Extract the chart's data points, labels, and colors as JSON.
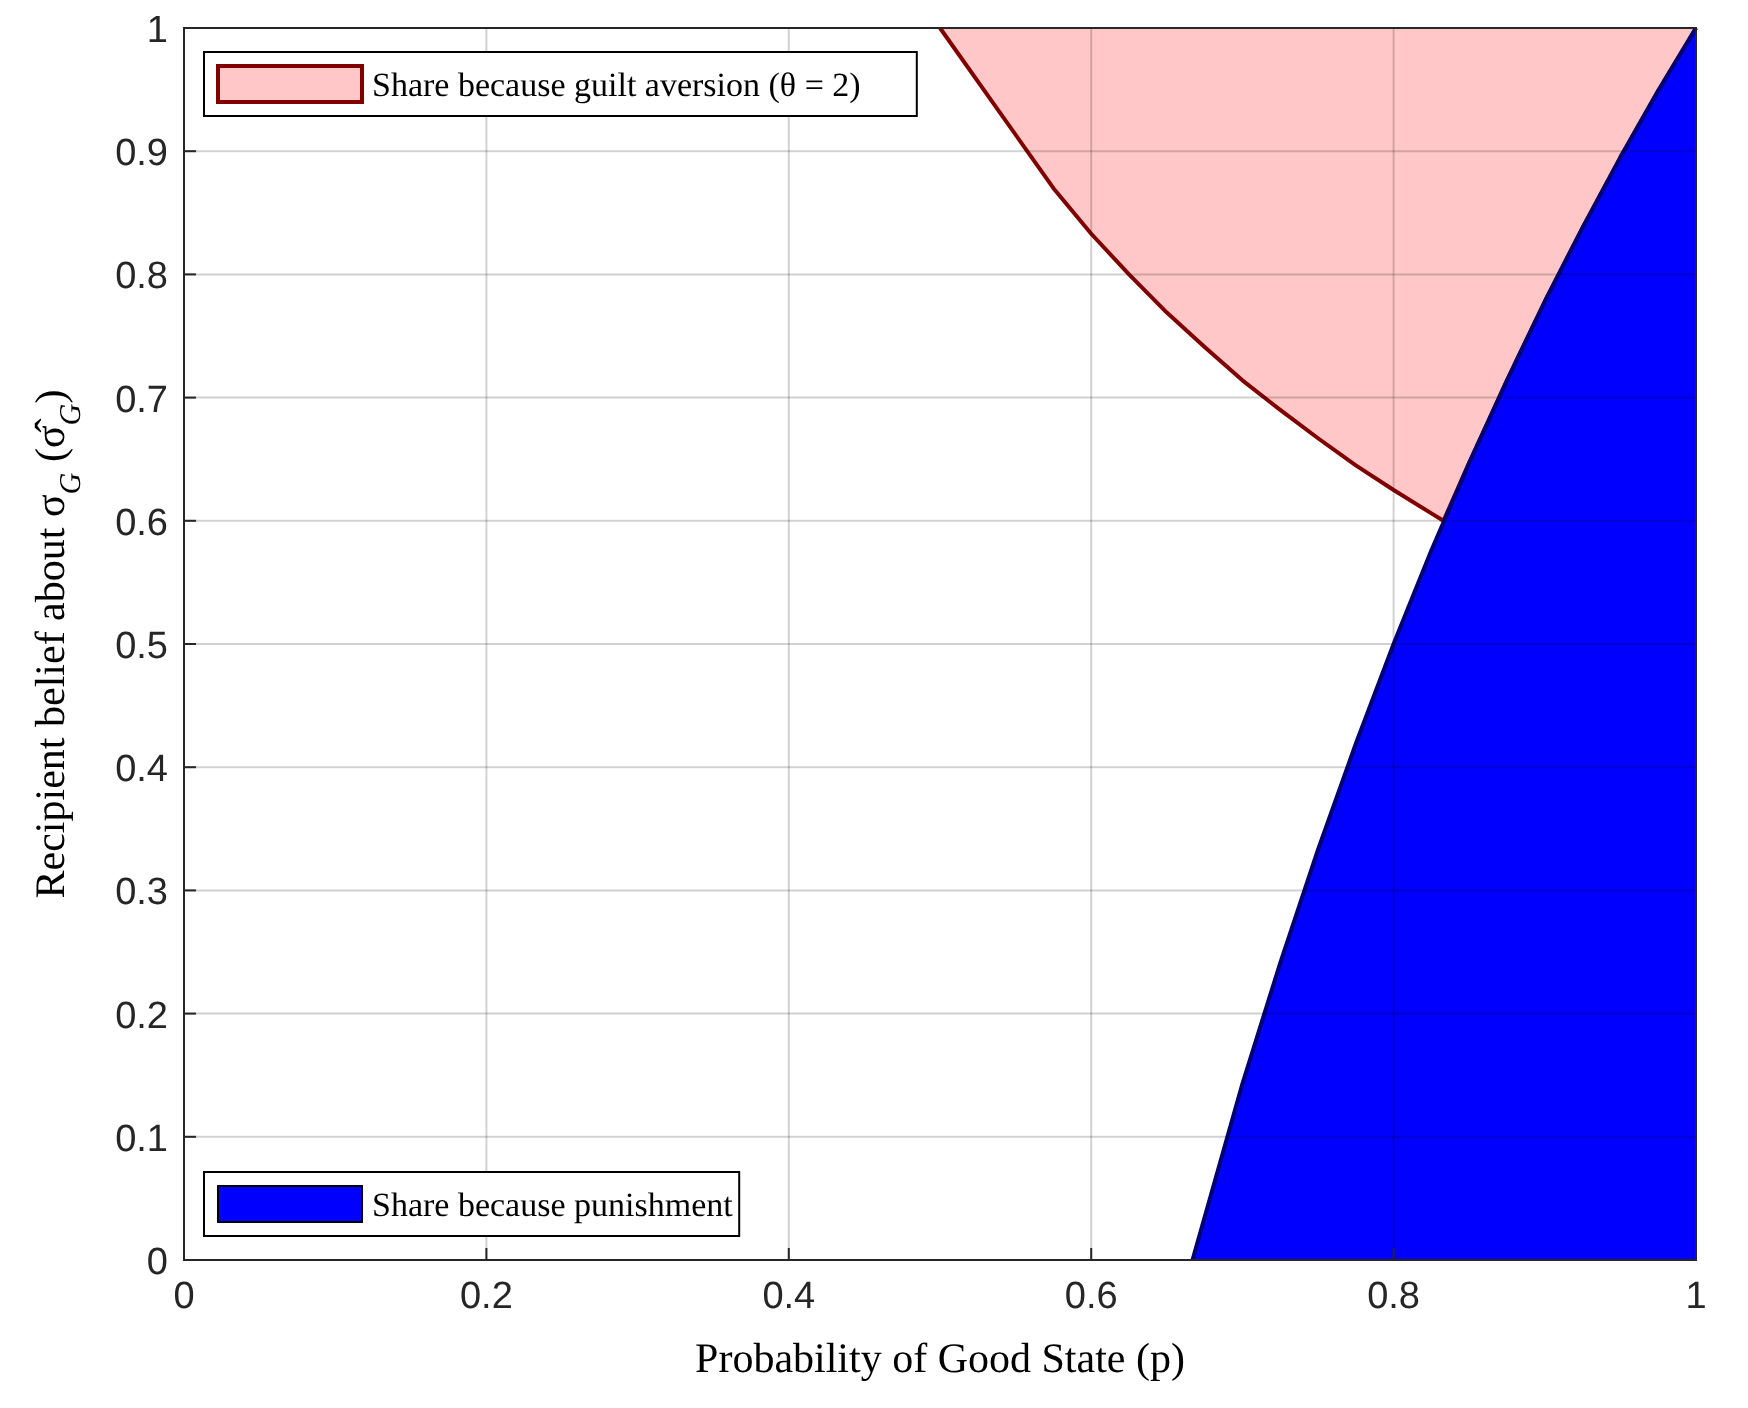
{
  "chart_data": {
    "type": "area",
    "xlabel": "Probability of Good State (p)",
    "ylabel": "Recipient belief about σ$_{G}$ (σ̂$_{G}$)",
    "xlim": [
      0,
      1
    ],
    "xticks": [
      0,
      0.2,
      0.4,
      0.6,
      0.8,
      1
    ],
    "ylim": [
      0,
      1
    ],
    "yticks": [
      0,
      0.1,
      0.2,
      0.3,
      0.4,
      0.5,
      0.6,
      0.7,
      0.8,
      0.9,
      1
    ],
    "grid": true,
    "legend": "left",
    "series": [
      {
        "name": "Share because guilt aversion (θ = 2)",
        "type": "line",
        "color": "#800000",
        "x": [
          0.5,
          0.575,
          0.6,
          0.625,
          0.65,
          0.675,
          0.7,
          0.725,
          0.75,
          0.775,
          0.8,
          0.825,
          0.833,
          0.85,
          0.875,
          0.9,
          0.925,
          0.95,
          0.975,
          1
        ],
        "values": [
          1,
          0.87,
          0.833,
          0.8,
          0.769,
          0.741,
          0.714,
          0.69,
          0.667,
          0.645,
          0.625,
          0.606,
          0.6,
          0.647,
          0.714,
          0.778,
          0.838,
          0.895,
          0.949,
          1
        ],
        "lower": [
          1,
          0.87,
          0.833,
          0.8,
          0.769,
          0.741,
          0.714,
          0.69,
          0.667,
          0.645,
          0.625,
          0.606,
          0.6,
          0.647,
          0.714,
          0.778,
          0.838,
          0.895,
          0.949,
          1
        ],
        "upper": [
          1,
          1,
          1,
          1,
          1,
          1,
          1,
          1,
          1,
          1,
          1,
          1,
          1,
          1,
          1,
          1,
          1,
          1,
          1,
          1
        ]
      },
      {
        "name": "Share because punishment",
        "color": "#0000ff",
        "x": [
          0.667,
          0.7,
          0.725,
          0.75,
          0.775,
          0.8,
          0.825,
          0.85,
          0.875,
          0.9,
          0.925,
          0.95,
          0.975,
          1
        ],
        "values": [
          0,
          0.143,
          0.241,
          0.333,
          0.419,
          0.5,
          0.576,
          0.647,
          0.714,
          0.778,
          0.838,
          0.895,
          0.949,
          1
        ]
      }
    ]
  }
}
